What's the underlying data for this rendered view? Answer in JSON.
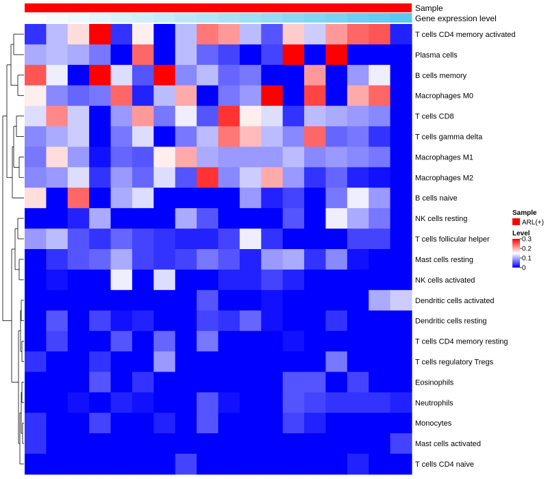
{
  "chart_data": {
    "type": "heatmap",
    "title": "",
    "annotations": {
      "top_label": "Sample",
      "bottom_label": "Gene expression level"
    },
    "rows": [
      "T cells CD4 memory activated",
      "Plasma cells",
      "B cells memory",
      "Macrophages M0",
      "T cells CD8",
      "T cells gamma delta",
      "Macrophages M1",
      "Macrophages M2",
      "B cells naive",
      "NK cells resting",
      "T cells follicular helper",
      "Mast cells resting",
      "NK cells activated",
      "Dendritic cells activated",
      "Dendritic cells resting",
      "T cells CD4 memory resting",
      "T cells regulatory  Tregs",
      "Eosinophils",
      "Neutrophils",
      "Monocytes",
      "Mast cells activated",
      "T cells CD4 naive"
    ],
    "n_columns": 18,
    "color_scale": {
      "min": 0,
      "max": 0.3,
      "low": "#0000FF",
      "mid": "#FFFFFF",
      "high": "#FF0000"
    },
    "gene_expression_gradient": [
      "#FFFFFF",
      "#5BC8F0"
    ],
    "values": [
      [
        0.03,
        0.11,
        0.17,
        0.3,
        0.03,
        0.16,
        0.0,
        0.11,
        0.23,
        0.21,
        0.11,
        0.05,
        0.18,
        0.12,
        0.21,
        0.24,
        0.25,
        0.02
      ],
      [
        0.1,
        0.11,
        0.1,
        0.07,
        0.0,
        0.24,
        0.0,
        0.11,
        0.06,
        0.04,
        0.0,
        0.04,
        0.3,
        0.0,
        0.3,
        0.0,
        0.0,
        0.0
      ],
      [
        0.25,
        0.14,
        0.0,
        0.3,
        0.13,
        0.05,
        0.3,
        0.08,
        0.11,
        0.06,
        0.07,
        0.0,
        0.0,
        0.21,
        0.0,
        0.09,
        0.14,
        0.0
      ],
      [
        0.16,
        0.08,
        0.06,
        0.07,
        0.24,
        0.02,
        0.11,
        0.2,
        0.0,
        0.07,
        0.09,
        0.3,
        0.0,
        0.26,
        0.0,
        0.2,
        0.24,
        0.0
      ],
      [
        0.13,
        0.22,
        0.12,
        0.0,
        0.09,
        0.21,
        0.07,
        0.14,
        0.05,
        0.27,
        0.16,
        0.13,
        0.03,
        0.11,
        0.1,
        0.09,
        0.08,
        0.0
      ],
      [
        0.08,
        0.1,
        0.12,
        0.0,
        0.07,
        0.13,
        0.0,
        0.07,
        0.11,
        0.23,
        0.19,
        0.11,
        0.08,
        0.24,
        0.06,
        0.07,
        0.03,
        0.0
      ],
      [
        0.07,
        0.17,
        0.09,
        0.01,
        0.06,
        0.05,
        0.16,
        0.2,
        0.1,
        0.09,
        0.09,
        0.09,
        0.11,
        0.08,
        0.09,
        0.08,
        0.07,
        0.0
      ],
      [
        0.08,
        0.09,
        0.13,
        0.03,
        0.09,
        0.06,
        0.13,
        0.05,
        0.27,
        0.08,
        0.12,
        0.2,
        0.09,
        0.03,
        0.06,
        0.02,
        0.01,
        0.0
      ],
      [
        0.17,
        0.0,
        0.24,
        0.0,
        0.1,
        0.13,
        0.0,
        0.0,
        0.0,
        0.0,
        0.09,
        0.02,
        0.04,
        0.0,
        0.07,
        0.14,
        0.09,
        0.0
      ],
      [
        0.0,
        0.0,
        0.02,
        0.1,
        0.0,
        0.0,
        0.0,
        0.1,
        0.05,
        0.0,
        0.0,
        0.0,
        0.05,
        0.0,
        0.14,
        0.1,
        0.07,
        0.0
      ],
      [
        0.09,
        0.11,
        0.05,
        0.03,
        0.06,
        0.04,
        0.03,
        0.02,
        0.02,
        0.04,
        0.14,
        0.03,
        0.0,
        0.0,
        0.0,
        0.04,
        0.04,
        0.0
      ],
      [
        0.0,
        0.03,
        0.05,
        0.06,
        0.1,
        0.04,
        0.03,
        0.04,
        0.07,
        0.05,
        0.02,
        0.09,
        0.1,
        0.03,
        0.08,
        0.01,
        0.0,
        0.0
      ],
      [
        0.0,
        0.01,
        0.0,
        0.0,
        0.14,
        0.0,
        0.13,
        0.0,
        0.0,
        0.02,
        0.02,
        0.04,
        0.02,
        0.0,
        0.0,
        0.0,
        0.0,
        0.0
      ],
      [
        0.0,
        0.0,
        0.0,
        0.0,
        0.0,
        0.0,
        0.0,
        0.0,
        0.05,
        0.0,
        0.0,
        0.01,
        0.0,
        0.0,
        0.0,
        0.0,
        0.1,
        0.12
      ],
      [
        0.0,
        0.05,
        0.0,
        0.04,
        0.01,
        0.02,
        0.0,
        0.0,
        0.04,
        0.03,
        0.06,
        0.01,
        0.0,
        0.0,
        0.03,
        0.0,
        0.0,
        0.0
      ],
      [
        0.0,
        0.04,
        0.0,
        0.0,
        0.05,
        0.0,
        0.06,
        0.0,
        0.07,
        0.0,
        0.0,
        0.0,
        0.01,
        0.0,
        0.0,
        0.0,
        0.0,
        0.0
      ],
      [
        0.03,
        0.0,
        0.0,
        0.03,
        0.0,
        0.0,
        0.09,
        0.0,
        0.0,
        0.0,
        0.0,
        0.0,
        0.0,
        0.0,
        0.07,
        0.0,
        0.0,
        0.0
      ],
      [
        0.0,
        0.0,
        0.0,
        0.05,
        0.0,
        0.03,
        0.0,
        0.0,
        0.0,
        0.0,
        0.0,
        0.0,
        0.05,
        0.05,
        0.0,
        0.04,
        0.0,
        0.0
      ],
      [
        0.0,
        0.0,
        0.01,
        0.0,
        0.02,
        0.01,
        0.0,
        0.0,
        0.05,
        0.01,
        0.0,
        0.0,
        0.05,
        0.04,
        0.03,
        0.03,
        0.03,
        0.02
      ],
      [
        0.03,
        0.0,
        0.0,
        0.04,
        0.0,
        0.0,
        0.02,
        0.0,
        0.05,
        0.0,
        0.0,
        0.0,
        0.04,
        0.02,
        0.0,
        0.0,
        0.0,
        0.0
      ],
      [
        0.03,
        0.0,
        0.0,
        0.0,
        0.0,
        0.0,
        0.0,
        0.0,
        0.0,
        0.0,
        0.0,
        0.0,
        0.0,
        0.0,
        0.0,
        0.0,
        0.0,
        0.04
      ],
      [
        0.0,
        0.0,
        0.0,
        0.0,
        0.0,
        0.0,
        0.0,
        0.04,
        0.0,
        0.0,
        0.0,
        0.0,
        0.0,
        0.0,
        0.0,
        0.02,
        0.0,
        0.0
      ]
    ],
    "legend": {
      "sample_title": "Sample",
      "sample_entry": "ARL(+)",
      "sample_color": "#FF0000",
      "level_title": "Level",
      "level_ticks": [
        {
          "value": 0.3,
          "label": "0.3"
        },
        {
          "value": 0.2,
          "label": "0.2"
        },
        {
          "value": 0.1,
          "label": "0.1"
        },
        {
          "value": 0,
          "label": "0"
        }
      ]
    }
  }
}
